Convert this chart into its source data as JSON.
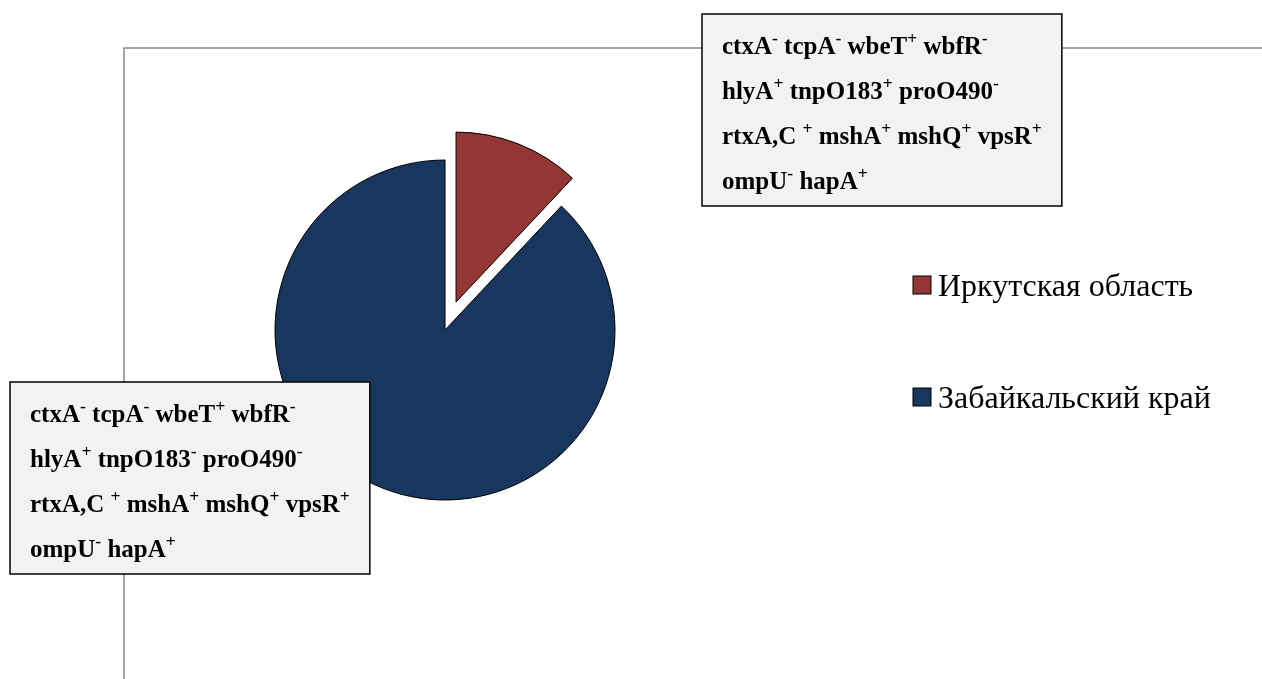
{
  "chart_data": {
    "type": "pie",
    "categories": [
      "Иркутская область",
      "Забайкальский край"
    ],
    "values": [
      12,
      88
    ],
    "colors": [
      "#943634",
      "#17375e"
    ],
    "legend": "right",
    "annotations": [
      "ctxA$^{-}$ tcpA$^{-}$  wbeT$^{+}$ wbfR$^{-}$\nhlyA$^{+}$ tnpO183$^{+}$ proO490$^{-}$\nrtxA,C $^{+}$ mshA$^{+}$ mshQ$^{+}$ vpsR$^{+}$\nompU$^{-}$ hapA$^{+}$",
      "ctxA$^{-}$ tcpA$^{-}$  wbeT$^{+}$ wbfR$^{-}$\nhlyA$^{+}$ tnpO183$^{-}$ proO490$^{-}$\nrtxA,C $^{+}$ mshA$^{+}$ mshQ$^{+}$ vpsR$^{+}$\nompU$^{-}$ hapA$^{+}$"
    ]
  }
}
